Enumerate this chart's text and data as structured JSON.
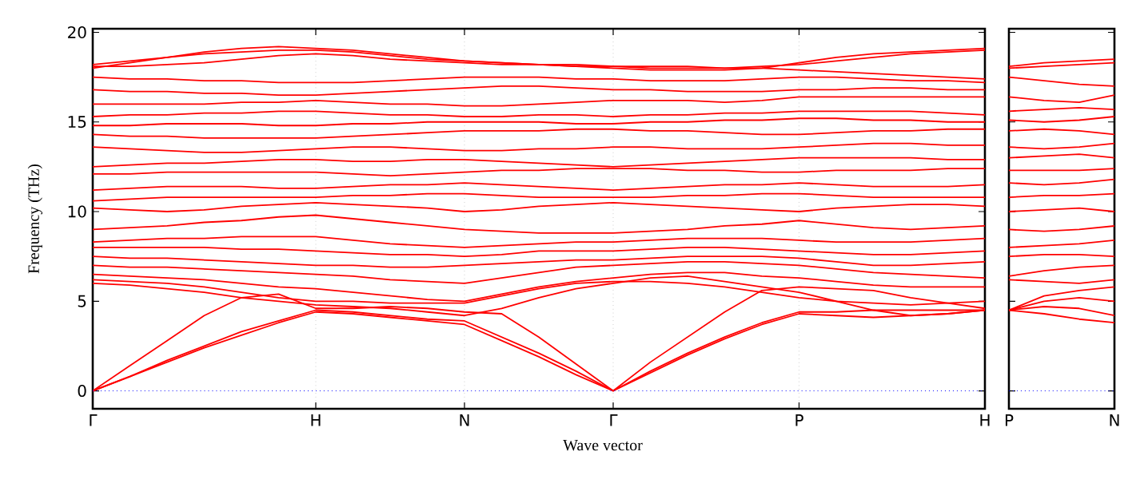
{
  "chart_data": [
    {
      "type": "line",
      "xlabel": "Wave vector",
      "ylabel": "Frequency (THz)",
      "color": "#ff0000",
      "grid": "x",
      "marker": "none",
      "line_style": "solid",
      "ylim": [
        -1,
        20.2
      ],
      "yticks": [
        0,
        5,
        10,
        15,
        20
      ],
      "ref_lines": [
        {
          "axis": "y",
          "value": 0,
          "color": "#0000ff",
          "line_style": "dotted"
        }
      ],
      "categories": [
        "Γ",
        null,
        null,
        null,
        null,
        null,
        "H",
        null,
        null,
        null,
        "N",
        null,
        null,
        null,
        "Γ",
        null,
        null,
        null,
        null,
        "P",
        null,
        null,
        null,
        null,
        "H"
      ],
      "series": [
        {
          "values": [
            0,
            0.8,
            1.6,
            2.4,
            3.1,
            3.8,
            4.4,
            4.3,
            4.1,
            3.9,
            3.7,
            2.8,
            1.9,
            0.9,
            0,
            1.0,
            2.0,
            2.9,
            3.7,
            4.3,
            4.2,
            4.1,
            4.2,
            4.3,
            4.5
          ]
        },
        {
          "values": [
            0,
            0.8,
            1.7,
            2.5,
            3.3,
            3.9,
            4.5,
            4.4,
            4.2,
            4.0,
            3.9,
            3.0,
            2.1,
            1.1,
            0,
            1.1,
            2.1,
            3.0,
            3.8,
            4.4,
            4.4,
            4.5,
            4.5,
            4.5,
            4.5
          ]
        },
        {
          "values": [
            0,
            1.4,
            2.8,
            4.2,
            5.2,
            5.4,
            4.6,
            4.6,
            4.7,
            4.6,
            4.4,
            4.3,
            3.0,
            1.5,
            0,
            1.6,
            3.0,
            4.4,
            5.6,
            5.8,
            5.7,
            5.6,
            5.2,
            4.9,
            4.6
          ]
        },
        {
          "values": [
            6.0,
            5.9,
            5.7,
            5.5,
            5.2,
            5.0,
            4.8,
            4.7,
            4.6,
            4.4,
            4.2,
            4.6,
            5.2,
            5.7,
            6.0,
            6.3,
            6.4,
            6.1,
            5.8,
            5.5,
            5.0,
            4.5,
            4.2,
            4.3,
            4.5
          ]
        },
        {
          "values": [
            6.2,
            6.1,
            6.0,
            5.8,
            5.5,
            5.2,
            5.0,
            5.0,
            4.9,
            4.9,
            4.9,
            5.3,
            5.7,
            6.0,
            6.1,
            6.1,
            6.0,
            5.8,
            5.5,
            5.2,
            5.0,
            4.9,
            4.8,
            4.9,
            5.0
          ]
        },
        {
          "values": [
            6.5,
            6.4,
            6.3,
            6.2,
            6.0,
            5.8,
            5.7,
            5.5,
            5.3,
            5.1,
            5.0,
            5.4,
            5.8,
            6.1,
            6.3,
            6.5,
            6.6,
            6.6,
            6.4,
            6.3,
            6.1,
            5.9,
            5.8,
            5.8,
            5.8
          ]
        },
        {
          "values": [
            7.0,
            6.9,
            6.9,
            6.8,
            6.7,
            6.6,
            6.5,
            6.4,
            6.2,
            6.1,
            6.0,
            6.3,
            6.6,
            6.9,
            7.0,
            7.1,
            7.2,
            7.2,
            7.1,
            7.0,
            6.8,
            6.6,
            6.5,
            6.4,
            6.3
          ]
        },
        {
          "values": [
            7.5,
            7.4,
            7.4,
            7.3,
            7.2,
            7.1,
            7.0,
            7.0,
            6.9,
            6.9,
            7.0,
            7.1,
            7.2,
            7.3,
            7.3,
            7.4,
            7.5,
            7.5,
            7.5,
            7.4,
            7.2,
            7.0,
            7.0,
            7.1,
            7.2
          ]
        },
        {
          "values": [
            8.0,
            8.0,
            8.0,
            8.0,
            7.9,
            7.9,
            7.8,
            7.7,
            7.6,
            7.6,
            7.5,
            7.6,
            7.8,
            7.8,
            7.8,
            7.9,
            8.0,
            8.0,
            7.9,
            7.8,
            7.7,
            7.6,
            7.6,
            7.7,
            7.8
          ]
        },
        {
          "values": [
            8.3,
            8.4,
            8.5,
            8.5,
            8.6,
            8.6,
            8.6,
            8.4,
            8.2,
            8.1,
            8.0,
            8.1,
            8.2,
            8.3,
            8.3,
            8.4,
            8.5,
            8.5,
            8.5,
            8.4,
            8.3,
            8.3,
            8.3,
            8.4,
            8.5
          ]
        },
        {
          "values": [
            9.0,
            9.1,
            9.2,
            9.4,
            9.5,
            9.7,
            9.8,
            9.6,
            9.4,
            9.2,
            9.0,
            8.9,
            8.8,
            8.8,
            8.8,
            8.9,
            9.0,
            9.2,
            9.3,
            9.5,
            9.3,
            9.1,
            9.0,
            9.1,
            9.2
          ]
        },
        {
          "values": [
            10.2,
            10.1,
            10.0,
            10.1,
            10.3,
            10.4,
            10.5,
            10.4,
            10.3,
            10.2,
            10.0,
            10.1,
            10.3,
            10.4,
            10.5,
            10.4,
            10.3,
            10.2,
            10.1,
            10.0,
            10.2,
            10.3,
            10.4,
            10.4,
            10.3
          ]
        },
        {
          "values": [
            10.6,
            10.7,
            10.8,
            10.8,
            10.8,
            10.8,
            10.8,
            10.9,
            10.9,
            11.0,
            11.0,
            10.9,
            10.8,
            10.8,
            10.8,
            10.8,
            10.9,
            10.9,
            11.0,
            11.0,
            10.9,
            10.8,
            10.8,
            10.8,
            10.8
          ]
        },
        {
          "values": [
            11.2,
            11.3,
            11.4,
            11.4,
            11.4,
            11.3,
            11.3,
            11.4,
            11.5,
            11.5,
            11.6,
            11.5,
            11.4,
            11.3,
            11.2,
            11.3,
            11.4,
            11.5,
            11.5,
            11.6,
            11.5,
            11.4,
            11.4,
            11.4,
            11.5
          ]
        },
        {
          "values": [
            12.1,
            12.1,
            12.2,
            12.2,
            12.2,
            12.2,
            12.2,
            12.1,
            12.0,
            12.1,
            12.2,
            12.3,
            12.3,
            12.4,
            12.4,
            12.4,
            12.3,
            12.3,
            12.2,
            12.2,
            12.3,
            12.3,
            12.3,
            12.4,
            12.4
          ]
        },
        {
          "values": [
            12.5,
            12.6,
            12.7,
            12.7,
            12.8,
            12.9,
            12.9,
            12.8,
            12.8,
            12.9,
            12.9,
            12.8,
            12.7,
            12.6,
            12.5,
            12.6,
            12.7,
            12.8,
            12.9,
            13.0,
            13.0,
            13.0,
            13.0,
            12.9,
            12.9
          ]
        },
        {
          "values": [
            13.6,
            13.5,
            13.4,
            13.3,
            13.3,
            13.4,
            13.5,
            13.6,
            13.6,
            13.5,
            13.4,
            13.4,
            13.5,
            13.5,
            13.6,
            13.6,
            13.5,
            13.5,
            13.5,
            13.6,
            13.7,
            13.8,
            13.8,
            13.7,
            13.7
          ]
        },
        {
          "values": [
            14.3,
            14.2,
            14.2,
            14.1,
            14.1,
            14.1,
            14.1,
            14.2,
            14.3,
            14.4,
            14.5,
            14.5,
            14.5,
            14.6,
            14.6,
            14.5,
            14.5,
            14.4,
            14.3,
            14.3,
            14.4,
            14.5,
            14.5,
            14.6,
            14.6
          ]
        },
        {
          "values": [
            14.8,
            14.8,
            14.9,
            14.9,
            14.9,
            14.8,
            14.8,
            14.9,
            14.9,
            15.0,
            15.0,
            15.0,
            15.0,
            14.9,
            14.9,
            15.0,
            15.0,
            15.1,
            15.1,
            15.2,
            15.2,
            15.1,
            15.1,
            15.0,
            15.0
          ]
        },
        {
          "values": [
            15.3,
            15.4,
            15.4,
            15.5,
            15.5,
            15.6,
            15.6,
            15.5,
            15.4,
            15.4,
            15.3,
            15.3,
            15.4,
            15.4,
            15.3,
            15.4,
            15.4,
            15.5,
            15.5,
            15.6,
            15.6,
            15.6,
            15.6,
            15.5,
            15.4
          ]
        },
        {
          "values": [
            16.0,
            16.0,
            16.0,
            16.0,
            16.1,
            16.1,
            16.2,
            16.1,
            16.0,
            16.0,
            15.9,
            15.9,
            16.0,
            16.1,
            16.2,
            16.2,
            16.2,
            16.1,
            16.2,
            16.4,
            16.4,
            16.4,
            16.4,
            16.4,
            16.4
          ]
        },
        {
          "values": [
            16.8,
            16.7,
            16.7,
            16.6,
            16.6,
            16.5,
            16.5,
            16.6,
            16.7,
            16.8,
            16.9,
            17.0,
            17.0,
            16.9,
            16.8,
            16.8,
            16.7,
            16.7,
            16.7,
            16.8,
            16.8,
            16.9,
            16.9,
            16.8,
            16.8
          ]
        },
        {
          "values": [
            17.5,
            17.4,
            17.4,
            17.3,
            17.3,
            17.2,
            17.2,
            17.2,
            17.3,
            17.4,
            17.5,
            17.5,
            17.5,
            17.4,
            17.4,
            17.3,
            17.3,
            17.3,
            17.4,
            17.5,
            17.5,
            17.4,
            17.3,
            17.3,
            17.2
          ]
        },
        {
          "values": [
            18.1,
            18.1,
            18.2,
            18.3,
            18.5,
            18.7,
            18.8,
            18.7,
            18.5,
            18.4,
            18.3,
            18.2,
            18.2,
            18.1,
            18.1,
            18.1,
            18.1,
            18.0,
            18.0,
            17.9,
            17.8,
            17.7,
            17.6,
            17.5,
            17.4
          ]
        },
        {
          "values": [
            18.2,
            18.4,
            18.6,
            18.8,
            18.9,
            19.0,
            19.0,
            18.9,
            18.7,
            18.5,
            18.4,
            18.3,
            18.2,
            18.2,
            18.1,
            18.0,
            18.0,
            18.0,
            18.1,
            18.2,
            18.4,
            18.6,
            18.8,
            18.9,
            19.0
          ]
        },
        {
          "values": [
            18.0,
            18.3,
            18.6,
            18.9,
            19.1,
            19.2,
            19.1,
            19.0,
            18.8,
            18.6,
            18.4,
            18.3,
            18.2,
            18.1,
            18.0,
            17.9,
            17.9,
            17.9,
            18.0,
            18.3,
            18.6,
            18.8,
            18.9,
            19.0,
            19.1
          ]
        }
      ]
    },
    {
      "type": "line",
      "color": "#ff0000",
      "marker": "none",
      "line_style": "solid",
      "tick_labels": "x",
      "ylim": [
        -1,
        20.2
      ],
      "yticks": [
        0,
        5,
        10,
        15,
        20
      ],
      "ref_lines": [
        {
          "axis": "y",
          "value": 0,
          "color": "#0000ff",
          "line_style": "dotted"
        }
      ],
      "categories": [
        "P",
        null,
        null,
        "N"
      ],
      "series": [
        {
          "values": [
            4.5,
            4.3,
            4.0,
            3.8
          ]
        },
        {
          "values": [
            4.5,
            4.7,
            4.6,
            4.2
          ]
        },
        {
          "values": [
            4.5,
            5.0,
            5.2,
            5.0
          ]
        },
        {
          "values": [
            4.5,
            5.3,
            5.6,
            5.8
          ]
        },
        {
          "values": [
            6.2,
            6.1,
            6.0,
            6.2
          ]
        },
        {
          "values": [
            6.4,
            6.7,
            6.9,
            7.0
          ]
        },
        {
          "values": [
            7.5,
            7.6,
            7.6,
            7.5
          ]
        },
        {
          "values": [
            8.0,
            8.1,
            8.2,
            8.4
          ]
        },
        {
          "values": [
            9.0,
            8.9,
            9.0,
            9.2
          ]
        },
        {
          "values": [
            10.0,
            10.1,
            10.2,
            10.0
          ]
        },
        {
          "values": [
            10.8,
            10.9,
            10.9,
            11.0
          ]
        },
        {
          "values": [
            11.6,
            11.5,
            11.6,
            11.8
          ]
        },
        {
          "values": [
            12.3,
            12.3,
            12.3,
            12.4
          ]
        },
        {
          "values": [
            13.0,
            13.1,
            13.2,
            13.0
          ]
        },
        {
          "values": [
            13.6,
            13.5,
            13.6,
            13.8
          ]
        },
        {
          "values": [
            14.5,
            14.6,
            14.5,
            14.3
          ]
        },
        {
          "values": [
            15.1,
            15.0,
            15.1,
            15.3
          ]
        },
        {
          "values": [
            15.6,
            15.7,
            15.8,
            15.7
          ]
        },
        {
          "values": [
            16.4,
            16.2,
            16.1,
            16.5
          ]
        },
        {
          "values": [
            17.5,
            17.3,
            17.1,
            17.0
          ]
        },
        {
          "values": [
            18.0,
            18.1,
            18.2,
            18.3
          ]
        },
        {
          "values": [
            18.1,
            18.3,
            18.4,
            18.5
          ]
        }
      ]
    }
  ]
}
